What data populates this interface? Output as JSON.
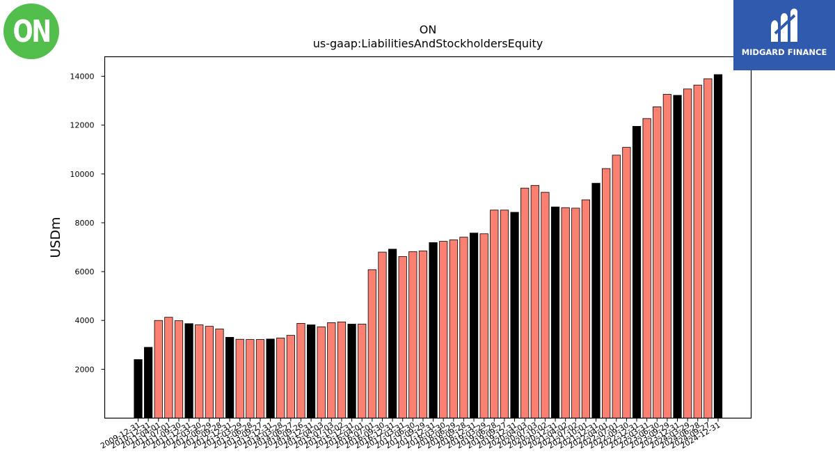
{
  "branding": {
    "company_logo_text": "ON",
    "company_logo_color": "#52be4c",
    "watermark_text": "MIDGARD FINANCE",
    "watermark_color": "#2f5aad"
  },
  "chart_data": {
    "type": "bar",
    "title": "ON",
    "subtitle": "us-gaap:LiabilitiesAndStockholdersEquity",
    "xlabel": "",
    "ylabel": "USDm",
    "ylim": [
      0,
      14800
    ],
    "yticks": [
      2000,
      4000,
      6000,
      8000,
      10000,
      12000,
      14000
    ],
    "grid": false,
    "colors": {
      "annual": "#000000",
      "quarterly": "#fa8072"
    },
    "categories": [
      "2009-12-31",
      "2010-12-31",
      "2011-04-01",
      "2011-07-01",
      "2011-09-30",
      "2011-12-31",
      "2012-03-30",
      "2012-06-29",
      "2012-09-28",
      "2012-12-31",
      "2013-03-29",
      "2013-06-28",
      "2013-09-27",
      "2013-12-31",
      "2014-03-28",
      "2014-06-27",
      "2014-09-26",
      "2014-12-31",
      "2015-04-03",
      "2015-07-03",
      "2015-10-02",
      "2015-12-31",
      "2016-04-01",
      "2016-07-01",
      "2016-09-30",
      "2016-12-31",
      "2017-03-31",
      "2017-06-30",
      "2017-09-29",
      "2017-12-31",
      "2018-03-30",
      "2018-06-29",
      "2018-09-28",
      "2018-12-31",
      "2019-03-29",
      "2019-06-28",
      "2019-09-27",
      "2019-12-31",
      "2020-04-03",
      "2020-07-03",
      "2020-10-02",
      "2020-12-31",
      "2021-04-02",
      "2021-07-02",
      "2021-10-01",
      "2021-12-31",
      "2022-04-01",
      "2022-07-01",
      "2022-09-30",
      "2022-12-31",
      "2023-03-31",
      "2023-06-30",
      "2023-09-29",
      "2023-12-31",
      "2024-03-29",
      "2024-06-28",
      "2024-09-27",
      "2024-12-31"
    ],
    "values": [
      2400,
      2900,
      4000,
      4130,
      3990,
      3870,
      3820,
      3760,
      3650,
      3310,
      3230,
      3220,
      3220,
      3240,
      3280,
      3390,
      3880,
      3820,
      3740,
      3910,
      3940,
      3850,
      3850,
      6080,
      6800,
      6920,
      6620,
      6820,
      6850,
      7190,
      7240,
      7300,
      7410,
      7580,
      7550,
      8520,
      8520,
      8430,
      9420,
      9530,
      9250,
      8650,
      8620,
      8600,
      8940,
      9620,
      10220,
      10770,
      11090,
      11950,
      12270,
      12750,
      13260,
      13220,
      13480,
      13640,
      13900,
      14070
    ],
    "annual": [
      true,
      true,
      false,
      false,
      false,
      true,
      false,
      false,
      false,
      true,
      false,
      false,
      false,
      true,
      false,
      false,
      false,
      true,
      false,
      false,
      false,
      true,
      false,
      false,
      false,
      true,
      false,
      false,
      false,
      true,
      false,
      false,
      false,
      true,
      false,
      false,
      false,
      true,
      false,
      false,
      false,
      true,
      false,
      false,
      false,
      true,
      false,
      false,
      false,
      true,
      false,
      false,
      false,
      true,
      false,
      false,
      false,
      true
    ]
  }
}
